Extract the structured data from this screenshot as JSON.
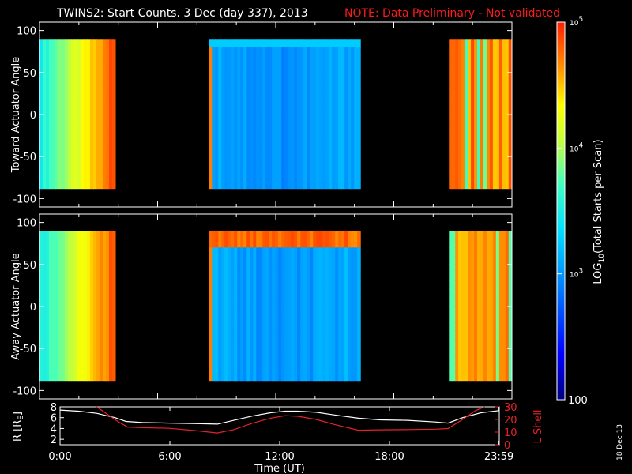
{
  "title": "TWINS2: Start Counts.  3 Dec (day 337), 2013",
  "note": "NOTE: Data Preliminary - Not validated",
  "stamp": "18 Dec 13",
  "colors": {
    "background": "#000000",
    "axis": "#ffffff",
    "note": "#ff1a1a",
    "lshell": "#e8202a",
    "r_line": "#ffffff"
  },
  "chart_data": [
    {
      "type": "heatmap",
      "panel": "toward",
      "ylabel": "Toward Actuator Angle",
      "ylim": [
        -110,
        110
      ],
      "yticks": [
        -100,
        -50,
        0,
        50,
        100
      ],
      "xlim": [
        0,
        24
      ],
      "data_angle_range": [
        -88,
        90
      ],
      "segments": [
        {
          "start": 0.0,
          "end": 3.85,
          "profile": "high_edges"
        },
        {
          "start": 8.6,
          "end": 16.3,
          "profile": "low_center"
        },
        {
          "start": 20.8,
          "end": 23.99,
          "profile": "high_striped"
        }
      ]
    },
    {
      "type": "heatmap",
      "panel": "away",
      "ylabel": "Away Actuator Angle",
      "ylim": [
        -110,
        110
      ],
      "yticks": [
        -100,
        -50,
        0,
        50,
        100
      ],
      "xlim": [
        0,
        24
      ],
      "data_angle_range": [
        -88,
        90
      ],
      "segments": [
        {
          "start": 0.0,
          "end": 3.85,
          "profile": "high_edges"
        },
        {
          "start": 8.6,
          "end": 16.3,
          "profile": "low_center_hot_top"
        },
        {
          "start": 20.8,
          "end": 23.99,
          "profile": "high_striped"
        }
      ]
    },
    {
      "type": "line",
      "panel": "ephemeris",
      "xlabel": "Time (UT)",
      "xticks": [
        0,
        6,
        12,
        18,
        23.983
      ],
      "xticklabels": [
        "0:00",
        "6:00",
        "12:00",
        "18:00",
        "23:59"
      ],
      "ylabel_left": "R [R",
      "ylabel_left_sub": "E",
      "ylabel_left_close": "]",
      "ylim_left": [
        1,
        8
      ],
      "yticks_left": [
        2,
        4,
        6,
        8
      ],
      "ylabel_right": "L Shell",
      "ylim_right": [
        0,
        30
      ],
      "yticks_right": [
        0,
        10,
        20,
        30
      ],
      "series": [
        {
          "axis": "left",
          "x": [
            0,
            1,
            2,
            3,
            3.6,
            4.5,
            6,
            7.5,
            8.6,
            9.5,
            10.5,
            11.5,
            12.3,
            13,
            14,
            15,
            16.3,
            17.5,
            19,
            20.5,
            21.2,
            22,
            23,
            23.99
          ],
          "y": [
            7.4,
            7.2,
            6.8,
            6.0,
            5.3,
            5.1,
            5.0,
            4.9,
            4.8,
            5.5,
            6.3,
            6.9,
            7.2,
            7.2,
            7.0,
            6.5,
            5.9,
            5.6,
            5.5,
            5.2,
            5.0,
            6.0,
            6.9,
            7.3
          ]
        },
        {
          "axis": "right",
          "x": [
            2.0,
            2.6,
            3.2,
            3.7,
            4.5,
            6,
            7.5,
            8.6,
            9.5,
            10.5,
            11.5,
            12.3,
            13,
            14,
            15,
            16.3,
            17.5,
            19,
            20.5,
            21.2,
            22,
            22.7,
            23.2
          ],
          "y": [
            30,
            24,
            18,
            14,
            13.5,
            13,
            11,
            9.3,
            12,
            17,
            21,
            23,
            22.5,
            20,
            16,
            11.5,
            11.8,
            12,
            12.3,
            12.8,
            20,
            27,
            30
          ]
        }
      ]
    },
    {
      "type": "heatmap",
      "panel": "colorbar",
      "ylabel": "LOG10(Total Starts per Scan)",
      "ylabel_parts": [
        "LOG",
        "10",
        "(Total Starts per Scan)"
      ],
      "scale": "log",
      "range": [
        100,
        100000
      ],
      "ticklabels": {
        "low": "100",
        "mid3": "3",
        "mid4": "4",
        "top": "5"
      },
      "ticklabel_base": "10"
    }
  ]
}
